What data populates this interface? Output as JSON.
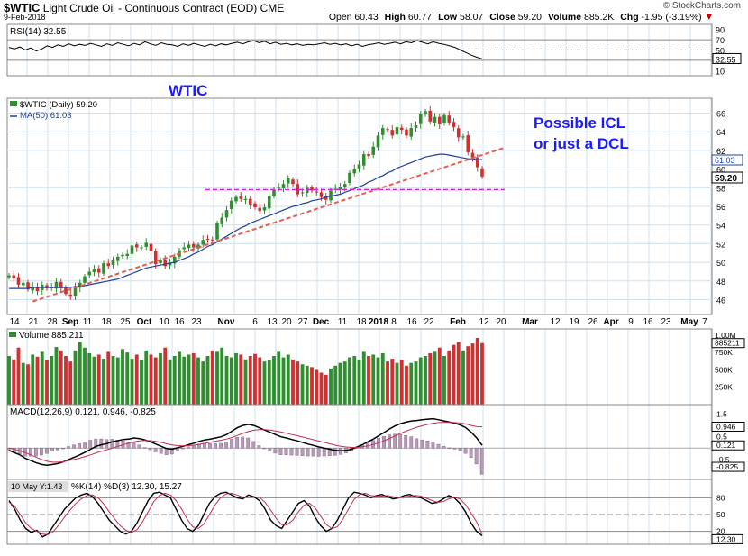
{
  "header": {
    "symbol": "$WTIC",
    "name": "Light Crude Oil - Continuous Contract (EOD)",
    "exchange": "CME",
    "date": "9-Feb-2018",
    "logo": "© StockCharts.com",
    "open_label": "Open",
    "open": "60.43",
    "high_label": "High",
    "high": "60.77",
    "low_label": "Low",
    "low": "58.07",
    "close_label": "Close",
    "close": "59.20",
    "volume_label": "Volume",
    "volume": "885.2K",
    "chg_label": "Chg",
    "chg": "-1.95 (-3.19%)",
    "chg_arrow": "▼"
  },
  "annotations": {
    "wtic": "WTIC",
    "possible_icl": "Possible ICL",
    "or_dcl": "or just a DCL"
  },
  "colors": {
    "up": "#2f8f2f",
    "down": "#d23030",
    "ma": "#1f3f9f",
    "trend": "#e06050",
    "support": "#e020e0",
    "annotation": "#1a1aff"
  },
  "chart_data": [
    {
      "type": "line",
      "panel": "rsi",
      "title": "RSI(14) 32.55",
      "ylim": [
        0,
        100
      ],
      "reference_lines": [
        30,
        50,
        70
      ],
      "tick_labels": [
        "90",
        "70",
        "50",
        "32.55",
        "10"
      ],
      "current": 32.55,
      "values": [
        55,
        52,
        56,
        50,
        54,
        48,
        52,
        58,
        55,
        60,
        57,
        62,
        58,
        61,
        59,
        63,
        60,
        57,
        62,
        59,
        64,
        61,
        58,
        63,
        60,
        66,
        62,
        59,
        64,
        61,
        60,
        57,
        62,
        59,
        63,
        60,
        57,
        61,
        58,
        62,
        60,
        63,
        65,
        62,
        66,
        68,
        64,
        67,
        62,
        65,
        61,
        63,
        60,
        62,
        59,
        61,
        60,
        62,
        64,
        61,
        63,
        60,
        62,
        58,
        61,
        57,
        60,
        62,
        64,
        61,
        63,
        65,
        62,
        66,
        64,
        68,
        65,
        62,
        66,
        63,
        61,
        58,
        55,
        50,
        45,
        40,
        36,
        32.55
      ]
    },
    {
      "type": "candlestick",
      "panel": "price",
      "title": "$WTIC (Daily) 59.20",
      "legend": [
        "$WTIC (Daily) 59.20",
        "MA(50) 61.03"
      ],
      "ylim": [
        44.5,
        67.5
      ],
      "y_ticks": [
        "66",
        "64",
        "62",
        "60",
        "58",
        "56",
        "54",
        "52",
        "50",
        "48",
        "46"
      ],
      "x_tick_labels": [
        "14",
        "21",
        "28",
        "Sep",
        "11",
        "18",
        "25",
        "Oct",
        "10",
        "16",
        "23",
        "Nov",
        "6",
        "13",
        "20",
        "27",
        "Dec",
        "11",
        "18",
        "2018",
        "8",
        "16",
        "22",
        "Feb",
        "12",
        "20",
        "Mar",
        "12",
        "19",
        "26",
        "Apr",
        "9",
        "16",
        "23",
        "May",
        "7"
      ],
      "last_close": "59.20",
      "ma50_last": "61.03",
      "ma50_label": "61.03",
      "close": [
        48.6,
        48.3,
        47.6,
        47.8,
        47.1,
        47.4,
        46.9,
        47.6,
        47.2,
        47.3,
        47.9,
        47.2,
        46.6,
        46.3,
        47.4,
        47.8,
        48.5,
        49.0,
        49.3,
        48.9,
        49.9,
        49.6,
        50.2,
        50.6,
        50.8,
        50.9,
        51.8,
        51.6,
        51.6,
        52.1,
        51.2,
        49.8,
        50.3,
        49.6,
        50.0,
        50.6,
        51.3,
        51.6,
        51.9,
        51.6,
        51.9,
        52.4,
        52.5,
        52.4,
        54.2,
        54.8,
        55.6,
        56.6,
        57.0,
        56.8,
        56.8,
        56.2,
        55.9,
        55.5,
        55.9,
        57.1,
        57.8,
        58.0,
        58.4,
        59.0,
        58.4,
        57.3,
        57.5,
        58.0,
        57.7,
        57.5,
        57.0,
        56.7,
        57.7,
        57.9,
        58.1,
        58.4,
        59.6,
        60.0,
        60.5,
        61.6,
        61.4,
        62.4,
        63.6,
        64.4,
        64.2,
        63.6,
        64.5,
        64.2,
        63.6,
        64.4,
        64.7,
        65.9,
        66.2,
        65.1,
        65.6,
        64.8,
        65.8,
        65.0,
        64.5,
        63.4,
        63.5,
        61.8,
        61.2,
        60.2,
        59.2
      ],
      "ma50": [
        47.2,
        47.2,
        47.2,
        47.2,
        47.2,
        47.3,
        47.3,
        47.3,
        47.3,
        47.3,
        47.3,
        47.3,
        47.3,
        47.3,
        47.4,
        47.4,
        47.5,
        47.6,
        47.7,
        47.8,
        47.9,
        48.0,
        48.1,
        48.2,
        48.4,
        48.6,
        48.8,
        49.0,
        49.2,
        49.4,
        49.5,
        49.6,
        49.7,
        49.8,
        49.9,
        50.0,
        50.2,
        50.4,
        50.6,
        50.9,
        51.1,
        51.4,
        51.7,
        51.9,
        52.2,
        52.5,
        52.8,
        53.1,
        53.4,
        53.7,
        53.9,
        54.2,
        54.4,
        54.6,
        54.8,
        55.0,
        55.2,
        55.4,
        55.6,
        55.8,
        56.0,
        56.1,
        56.3,
        56.4,
        56.6,
        56.7,
        56.8,
        57.0,
        57.1,
        57.2,
        57.3,
        57.5,
        57.7,
        57.9,
        58.1,
        58.3,
        58.6,
        58.8,
        59.1,
        59.3,
        59.6,
        59.8,
        60.1,
        60.3,
        60.5,
        60.7,
        60.9,
        61.1,
        61.3,
        61.4,
        61.5,
        61.6,
        61.6,
        61.5,
        61.4,
        61.3,
        61.2,
        61.1,
        61.1,
        61.0,
        61.03
      ],
      "support_line": 57.8,
      "trend_line": {
        "from": 45.8,
        "to": 62.3
      }
    },
    {
      "type": "bar",
      "panel": "volume",
      "title": "Volume 885,211",
      "y_ticks": [
        "1.00M",
        "885211",
        "750K",
        "500K",
        "250K"
      ],
      "last": 885211,
      "values": [
        700,
        650,
        820,
        600,
        580,
        720,
        690,
        760,
        640,
        700,
        830,
        780,
        700,
        620,
        780,
        900,
        820,
        740,
        690,
        720,
        660,
        760,
        700,
        680,
        800,
        750,
        660,
        720,
        640,
        780,
        720,
        680,
        740,
        820,
        650,
        700,
        760,
        690,
        720,
        740,
        680,
        620,
        700,
        780,
        760,
        820,
        700,
        680,
        740,
        720,
        650,
        700,
        730,
        680,
        620,
        640,
        700,
        760,
        680,
        720,
        650,
        620,
        580,
        560,
        540,
        500,
        460,
        430,
        520,
        560,
        600,
        620,
        680,
        700,
        640,
        760,
        700,
        720,
        680,
        740,
        620,
        660,
        600,
        640,
        560,
        600,
        620,
        680,
        700,
        740,
        760,
        820,
        700,
        780,
        860,
        900,
        780,
        840,
        880,
        960,
        885
      ]
    },
    {
      "type": "line",
      "panel": "macd",
      "title": "MACD(12,26,9) 0.121, 0.946, -0.825",
      "y_ticks": [
        "1.5",
        "0.946",
        "0.5",
        "0.121",
        "-0.5",
        "-0.825"
      ],
      "ylim": [
        -1.3,
        1.8
      ],
      "macd": [
        -0.1,
        -0.2,
        -0.3,
        -0.45,
        -0.55,
        -0.65,
        -0.72,
        -0.75,
        -0.72,
        -0.68,
        -0.6,
        -0.5,
        -0.4,
        -0.3,
        -0.18,
        -0.05,
        0.08,
        0.15,
        0.2,
        0.28,
        0.33,
        0.38,
        0.4,
        0.45,
        0.42,
        0.36,
        0.28,
        0.18,
        0.08,
        -0.02,
        -0.05,
        0.02,
        0.08,
        0.15,
        0.22,
        0.3,
        0.36,
        0.4,
        0.45,
        0.5,
        0.6,
        0.75,
        0.9,
        1.0,
        1.05,
        1.0,
        0.9,
        0.8,
        0.7,
        0.6,
        0.5,
        0.45,
        0.38,
        0.32,
        0.25,
        0.18,
        0.12,
        0.05,
        0.0,
        -0.05,
        -0.1,
        -0.12,
        -0.1,
        -0.05,
        0.05,
        0.15,
        0.28,
        0.4,
        0.55,
        0.7,
        0.85,
        0.98,
        1.08,
        1.15,
        1.2,
        1.22,
        1.25,
        1.28,
        1.3,
        1.25,
        1.2,
        1.15,
        1.1,
        1.02,
        0.9,
        0.7,
        0.45,
        0.121
      ],
      "signal": [
        0.0,
        -0.05,
        -0.12,
        -0.2,
        -0.3,
        -0.4,
        -0.5,
        -0.58,
        -0.62,
        -0.62,
        -0.6,
        -0.55,
        -0.5,
        -0.44,
        -0.37,
        -0.3,
        -0.21,
        -0.14,
        -0.07,
        0.0,
        0.08,
        0.15,
        0.22,
        0.28,
        0.32,
        0.34,
        0.33,
        0.3,
        0.25,
        0.19,
        0.14,
        0.11,
        0.1,
        0.11,
        0.13,
        0.17,
        0.21,
        0.26,
        0.31,
        0.35,
        0.4,
        0.47,
        0.56,
        0.65,
        0.73,
        0.79,
        0.82,
        0.82,
        0.8,
        0.76,
        0.71,
        0.66,
        0.6,
        0.55,
        0.49,
        0.43,
        0.37,
        0.31,
        0.25,
        0.19,
        0.13,
        0.08,
        0.05,
        0.03,
        0.03,
        0.06,
        0.1,
        0.16,
        0.24,
        0.33,
        0.43,
        0.54,
        0.65,
        0.75,
        0.84,
        0.92,
        0.99,
        1.05,
        1.1,
        1.13,
        1.14,
        1.14,
        1.13,
        1.11,
        1.07,
        1.0,
        0.95,
        0.946
      ]
    },
    {
      "type": "line",
      "panel": "stochastic",
      "title": "%K(14) %D(3) 12.30, 15.27",
      "overlay_label": "10 May Y:1.43",
      "y_ticks": [
        "80",
        "50",
        "20",
        "12.30"
      ],
      "ylim": [
        0,
        100
      ],
      "k": [
        75,
        60,
        40,
        25,
        18,
        22,
        10,
        15,
        30,
        45,
        60,
        70,
        80,
        85,
        88,
        82,
        70,
        55,
        40,
        30,
        20,
        15,
        20,
        35,
        55,
        75,
        88,
        90,
        85,
        80,
        60,
        40,
        25,
        20,
        30,
        50,
        70,
        82,
        88,
        90,
        85,
        80,
        78,
        85,
        82,
        75,
        60,
        40,
        30,
        25,
        40,
        55,
        70,
        75,
        65,
        45,
        30,
        20,
        25,
        40,
        60,
        80,
        90,
        88,
        85,
        80,
        84,
        86,
        82,
        78,
        80,
        84,
        86,
        82,
        80,
        75,
        70,
        72,
        78,
        84,
        80,
        70,
        55,
        35,
        20,
        12.3
      ],
      "d": [
        72,
        65,
        50,
        35,
        25,
        20,
        15,
        14,
        20,
        32,
        46,
        58,
        70,
        78,
        84,
        85,
        80,
        69,
        55,
        42,
        30,
        22,
        18,
        23,
        37,
        55,
        73,
        84,
        88,
        85,
        75,
        60,
        42,
        28,
        25,
        33,
        50,
        67,
        80,
        87,
        88,
        85,
        81,
        81,
        82,
        81,
        72,
        58,
        43,
        32,
        32,
        40,
        55,
        67,
        70,
        62,
        47,
        32,
        25,
        28,
        42,
        60,
        77,
        86,
        88,
        84,
        83,
        83,
        84,
        82,
        80,
        81,
        83,
        84,
        83,
        79,
        75,
        72,
        73,
        78,
        81,
        78,
        68,
        53,
        37,
        15.27
      ]
    }
  ]
}
